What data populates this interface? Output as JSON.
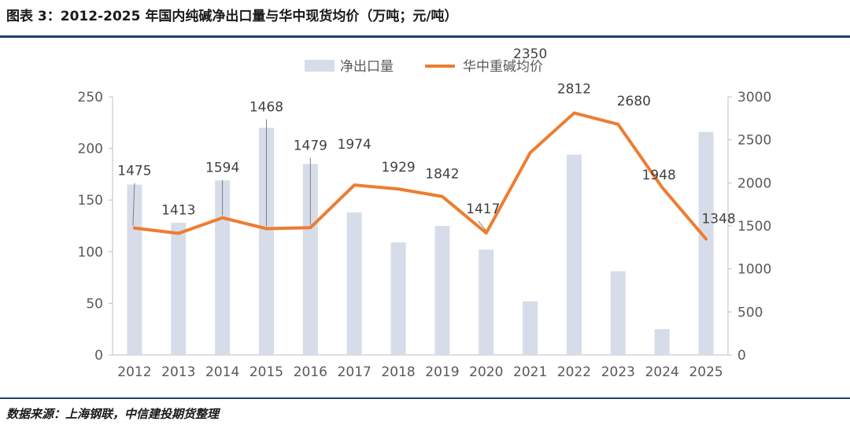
{
  "title": "图表 3：2012-2025 年国内纯碱净出口量与华中现货均价（万吨；元/吨）",
  "source": "数据来源：上海钢联，中信建投期货整理",
  "colors": {
    "bar": "#d6dde9",
    "line": "#ed7d31",
    "axis": "#bfbfbf",
    "leader": "#7f7f7f",
    "rule": "#1f3f6e"
  },
  "chart_data": {
    "type": "bar+line",
    "categories": [
      "2012",
      "2013",
      "2014",
      "2015",
      "2016",
      "2017",
      "2018",
      "2019",
      "2020",
      "2021",
      "2022",
      "2023",
      "2024",
      "2025"
    ],
    "series": [
      {
        "name": "净出口量",
        "type": "bar",
        "axis": "left",
        "values": [
          165,
          128,
          169,
          220,
          185,
          138,
          109,
          125,
          102,
          52,
          194,
          81,
          25,
          216
        ]
      },
      {
        "name": "华中重碱均价",
        "type": "line",
        "axis": "right",
        "values": [
          1475,
          1413,
          1594,
          1468,
          1479,
          1974,
          1929,
          1842,
          1417,
          2350,
          2812,
          2680,
          1948,
          1348
        ],
        "labels": [
          "1475",
          "1413",
          "1594",
          "1468",
          "1479",
          "1974",
          "1929",
          "1842",
          "1417",
          "2350",
          "2812",
          "2680",
          "1948",
          "1348"
        ]
      }
    ],
    "y_left": {
      "min": 0,
      "max": 250,
      "ticks": [
        "0",
        "50",
        "100",
        "150",
        "200",
        "250"
      ]
    },
    "y_right": {
      "min": 0,
      "max": 3000,
      "ticks": [
        "0",
        "500",
        "1000",
        "1500",
        "2000",
        "2500",
        "3000"
      ]
    },
    "legend": [
      "净出口量",
      "华中重碱均价"
    ],
    "legend_position": "top-center"
  }
}
